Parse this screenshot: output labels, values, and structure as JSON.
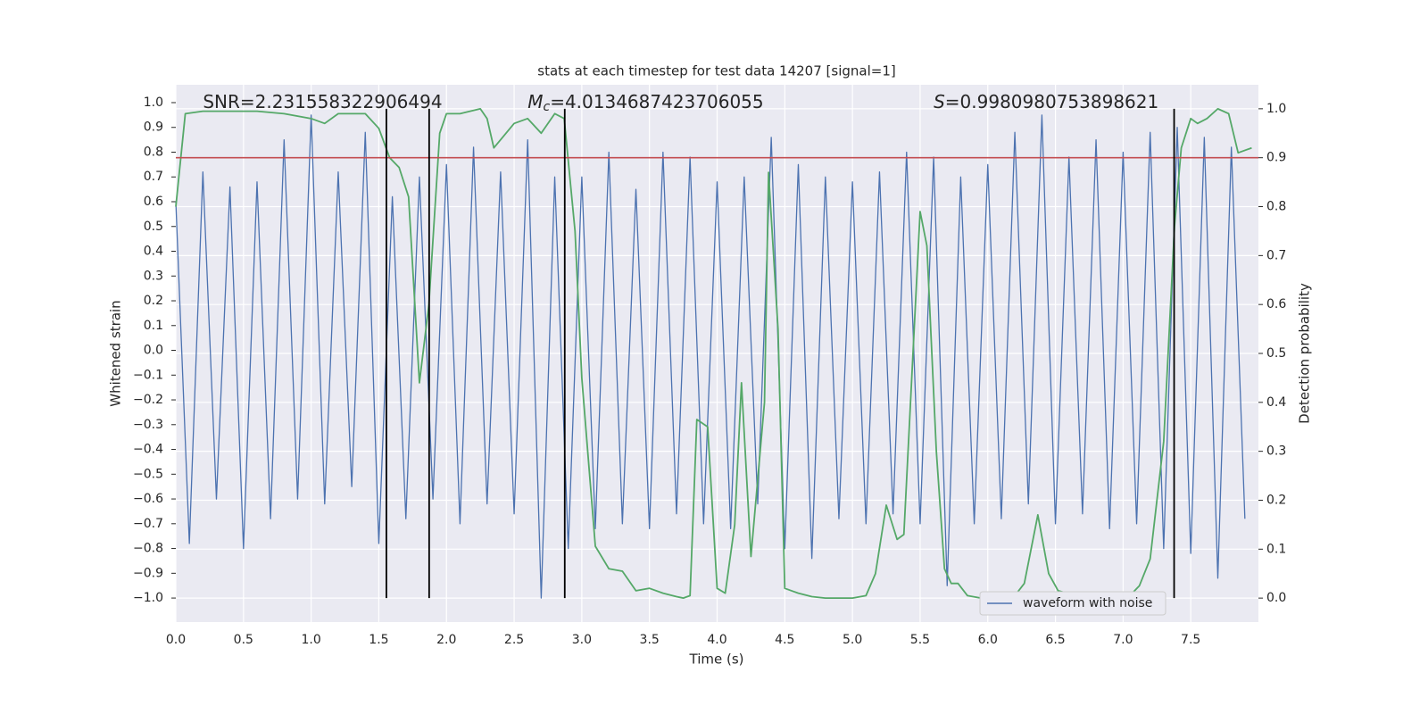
{
  "chart_data": {
    "type": "line",
    "title": "stats at each timestep for test data 14207 [signal=1]",
    "xlabel": "Time (s)",
    "ylabel": "Whitened strain",
    "y2label": "Detection probability",
    "xlim": [
      0,
      8
    ],
    "ylim": [
      -1.097,
      1.072
    ],
    "y2lim": [
      -0.049,
      1.049
    ],
    "xticks": [
      {
        "value": 0,
        "label": "0.0"
      },
      {
        "value": 0.5,
        "label": "0.5"
      },
      {
        "value": 1,
        "label": "1.0"
      },
      {
        "value": 1.5,
        "label": "1.5"
      },
      {
        "value": 2,
        "label": "2.0"
      },
      {
        "value": 2.5,
        "label": "2.5"
      },
      {
        "value": 3,
        "label": "3.0"
      },
      {
        "value": 3.5,
        "label": "3.5"
      },
      {
        "value": 4,
        "label": "4.0"
      },
      {
        "value": 4.5,
        "label": "4.5"
      },
      {
        "value": 5,
        "label": "5.0"
      },
      {
        "value": 5.5,
        "label": "5.5"
      },
      {
        "value": 6,
        "label": "6.0"
      },
      {
        "value": 6.5,
        "label": "6.5"
      },
      {
        "value": 7,
        "label": "7.0"
      },
      {
        "value": 7.5,
        "label": "7.5"
      }
    ],
    "yticks": [
      {
        "value": -1,
        "label": "−1.0"
      },
      {
        "value": -0.9,
        "label": "−0.9"
      },
      {
        "value": -0.8,
        "label": "−0.8"
      },
      {
        "value": -0.7,
        "label": "−0.7"
      },
      {
        "value": -0.6,
        "label": "−0.6"
      },
      {
        "value": -0.5,
        "label": "−0.5"
      },
      {
        "value": -0.4,
        "label": "−0.4"
      },
      {
        "value": -0.3,
        "label": "−0.3"
      },
      {
        "value": -0.2,
        "label": "−0.2"
      },
      {
        "value": -0.1,
        "label": "−0.1"
      },
      {
        "value": 0,
        "label": "0.0"
      },
      {
        "value": 0.1,
        "label": "0.1"
      },
      {
        "value": 0.2,
        "label": "0.2"
      },
      {
        "value": 0.3,
        "label": "0.3"
      },
      {
        "value": 0.4,
        "label": "0.4"
      },
      {
        "value": 0.5,
        "label": "0.5"
      },
      {
        "value": 0.6,
        "label": "0.6"
      },
      {
        "value": 0.7,
        "label": "0.7"
      },
      {
        "value": 0.8,
        "label": "0.8"
      },
      {
        "value": 0.9,
        "label": "0.9"
      },
      {
        "value": 1,
        "label": "1.0"
      }
    ],
    "y2ticks": [
      {
        "value": 0,
        "label": "0.0"
      },
      {
        "value": 0.1,
        "label": "0.1"
      },
      {
        "value": 0.2,
        "label": "0.2"
      },
      {
        "value": 0.3,
        "label": "0.3"
      },
      {
        "value": 0.4,
        "label": "0.4"
      },
      {
        "value": 0.5,
        "label": "0.5"
      },
      {
        "value": 0.6,
        "label": "0.6"
      },
      {
        "value": 0.7,
        "label": "0.7"
      },
      {
        "value": 0.8,
        "label": "0.8"
      },
      {
        "value": 0.9,
        "label": "0.9"
      },
      {
        "value": 1,
        "label": "1.0"
      }
    ],
    "grid": true,
    "legend": "lower right",
    "series": [
      {
        "name": "waveform with noise",
        "color": "#4c72b0",
        "x": [
          0,
          0.1,
          0.2,
          0.3,
          0.4,
          0.5,
          0.6,
          0.7,
          0.8,
          0.9,
          1,
          1.1,
          1.2,
          1.3,
          1.4,
          1.5,
          1.6,
          1.7,
          1.8,
          1.9,
          2,
          2.1,
          2.2,
          2.3,
          2.4,
          2.5,
          2.6,
          2.7,
          2.8,
          2.9,
          3,
          3.1,
          3.2,
          3.3,
          3.4,
          3.5,
          3.6,
          3.7,
          3.8,
          3.9,
          4,
          4.1,
          4.2,
          4.3,
          4.4,
          4.5,
          4.6,
          4.7,
          4.8,
          4.9,
          5,
          5.1,
          5.2,
          5.3,
          5.4,
          5.5,
          5.6,
          5.7,
          5.8,
          5.9,
          6,
          6.1,
          6.2,
          6.3,
          6.4,
          6.5,
          6.6,
          6.7,
          6.8,
          6.9,
          7,
          7.1,
          7.2,
          7.3,
          7.4,
          7.5,
          7.6,
          7.7,
          7.8,
          7.9
        ],
        "values": [
          0.6,
          -0.78,
          0.72,
          -0.6,
          0.66,
          -0.8,
          0.68,
          -0.68,
          0.85,
          -0.6,
          0.95,
          -0.62,
          0.72,
          -0.55,
          0.88,
          -0.78,
          0.62,
          -0.68,
          0.7,
          -0.6,
          0.75,
          -0.7,
          0.82,
          -0.62,
          0.72,
          -0.66,
          0.85,
          -1.0,
          0.7,
          -0.8,
          0.7,
          -0.72,
          0.8,
          -0.7,
          0.65,
          -0.72,
          0.8,
          -0.66,
          0.78,
          -0.7,
          0.68,
          -0.72,
          0.7,
          -0.62,
          0.86,
          -0.8,
          0.75,
          -0.84,
          0.7,
          -0.68,
          0.68,
          -0.7,
          0.72,
          -0.66,
          0.8,
          -0.7,
          0.78,
          -0.95,
          0.7,
          -0.7,
          0.75,
          -0.68,
          0.88,
          -0.62,
          0.95,
          -0.7,
          0.78,
          -0.66,
          0.85,
          -0.72,
          0.8,
          -0.7,
          0.88,
          -0.8,
          0.9,
          -0.82,
          0.86,
          -0.92,
          0.82,
          -0.68
        ]
      },
      {
        "color": "#55a868",
        "axis": "y2",
        "x": [
          0,
          0.07,
          0.2,
          0.4,
          0.6,
          0.8,
          1,
          1.1,
          1.2,
          1.4,
          1.5,
          1.58,
          1.65,
          1.72,
          1.8,
          1.87,
          1.95,
          2,
          2.1,
          2.25,
          2.3,
          2.35,
          2.5,
          2.6,
          2.7,
          2.8,
          2.87,
          2.95,
          3,
          3.1,
          3.2,
          3.3,
          3.4,
          3.5,
          3.6,
          3.7,
          3.75,
          3.8,
          3.85,
          3.93,
          4,
          4.06,
          4.13,
          4.18,
          4.25,
          4.35,
          4.38,
          4.45,
          4.5,
          4.6,
          4.7,
          4.8,
          5,
          5.1,
          5.17,
          5.25,
          5.33,
          5.38,
          5.5,
          5.55,
          5.62,
          5.68,
          5.73,
          5.78,
          5.85,
          5.95,
          6.1,
          6.2,
          6.27,
          6.37,
          6.45,
          6.52,
          6.65,
          6.8,
          6.95,
          7.05,
          7.12,
          7.2,
          7.3,
          7.38,
          7.43,
          7.5,
          7.55,
          7.62,
          7.7,
          7.78,
          7.85,
          7.95
        ],
        "values": [
          0.8,
          0.99,
          0.995,
          0.995,
          0.995,
          0.99,
          0.98,
          0.97,
          0.99,
          0.99,
          0.96,
          0.9,
          0.88,
          0.82,
          0.44,
          0.6,
          0.95,
          0.99,
          0.99,
          1.0,
          0.98,
          0.92,
          0.97,
          0.98,
          0.95,
          0.99,
          0.98,
          0.75,
          0.45,
          0.106,
          0.06,
          0.055,
          0.015,
          0.02,
          0.01,
          0.003,
          0.0,
          0.005,
          0.365,
          0.35,
          0.02,
          0.01,
          0.15,
          0.44,
          0.085,
          0.4,
          0.87,
          0.55,
          0.02,
          0.01,
          0.003,
          0.0,
          0.0,
          0.005,
          0.05,
          0.19,
          0.12,
          0.13,
          0.79,
          0.72,
          0.3,
          0.06,
          0.03,
          0.03,
          0.005,
          0.0,
          0.002,
          0.005,
          0.03,
          0.17,
          0.05,
          0.015,
          0.005,
          0.002,
          0.003,
          0.005,
          0.025,
          0.08,
          0.32,
          0.76,
          0.92,
          0.98,
          0.97,
          0.98,
          1.0,
          0.99,
          0.91,
          0.92
        ]
      }
    ],
    "hline": {
      "value": 0.9,
      "axis": "y2",
      "color": "#c44e52"
    },
    "vlines": {
      "x": [
        1.556,
        1.872,
        2.874,
        7.377
      ],
      "axis": "y2",
      "span": [
        0,
        1
      ],
      "color": "#000000"
    },
    "annotations": [
      {
        "text": "SNR=2.231558322906494",
        "x": 0.2
      },
      {
        "symbol": "M",
        "subscript": "c",
        "text": "=4.0134687423706055",
        "x": 2.6
      },
      {
        "symbol": "S",
        "text": "=0.9980980753898621",
        "x": 5.6
      }
    ]
  }
}
